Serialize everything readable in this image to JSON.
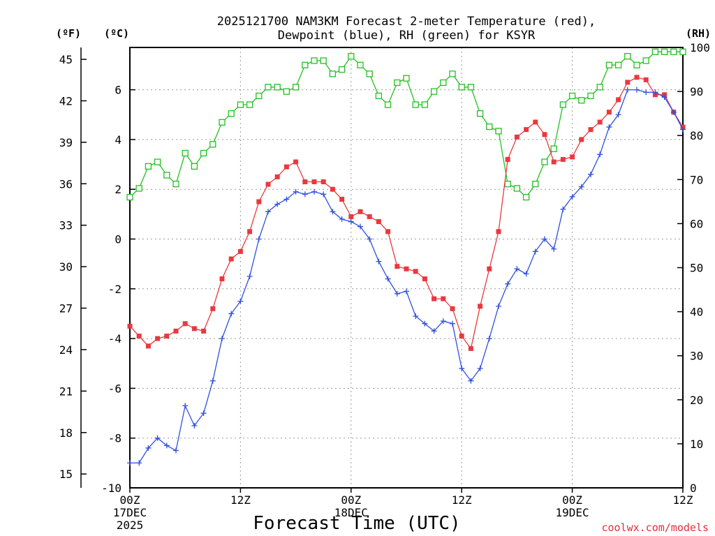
{
  "chart_data": {
    "type": "line",
    "title_line1": "2025121700 NAM3KM Forecast 2-meter Temperature (red),",
    "title_line2": "Dewpoint (blue), RH (green) for KSYR",
    "left_outer_unit": "(ºF)",
    "left_inner_unit": "(ºC)",
    "right_unit": "(RH)",
    "xlabel": "Forecast Time (UTC)",
    "credit": "coolwx.com/models",
    "x_hours_range": [
      0,
      60
    ],
    "celsius_range": [
      -10,
      7.7
    ],
    "rh_range": [
      0,
      100
    ],
    "x_ticks": [
      {
        "hour": 0,
        "line1": "00Z",
        "line2": "17DEC",
        "line3": "2025"
      },
      {
        "hour": 12,
        "line1": "12Z",
        "line2": "",
        "line3": ""
      },
      {
        "hour": 24,
        "line1": "00Z",
        "line2": "18DEC",
        "line3": ""
      },
      {
        "hour": 36,
        "line1": "12Z",
        "line2": "",
        "line3": ""
      },
      {
        "hour": 48,
        "line1": "00Z",
        "line2": "19DEC",
        "line3": ""
      },
      {
        "hour": 60,
        "line1": "12Z",
        "line2": "",
        "line3": ""
      }
    ],
    "celsius_ticks": [
      "-10",
      "-8",
      "-6",
      "-4",
      "-2",
      "0",
      "2",
      "4",
      "6"
    ],
    "fahrenheit_ticks": [
      "15",
      "18",
      "21",
      "24",
      "27",
      "30",
      "33",
      "36",
      "39",
      "42",
      "45"
    ],
    "rh_ticks": [
      "0",
      "10",
      "20",
      "30",
      "40",
      "50",
      "60",
      "70",
      "80",
      "90",
      "100"
    ],
    "series": [
      {
        "name": "Temperature",
        "unit": "C",
        "color": "#e8393f",
        "marker": "filled-square",
        "values": [
          -3.5,
          -3.9,
          -4.3,
          -4.0,
          -3.9,
          -3.7,
          -3.4,
          -3.6,
          -3.7,
          -2.8,
          -1.6,
          -0.8,
          -0.5,
          0.3,
          1.5,
          2.2,
          2.5,
          2.9,
          3.1,
          2.3,
          2.3,
          2.3,
          2.0,
          1.6,
          0.9,
          1.1,
          0.9,
          0.7,
          0.3,
          -1.1,
          -1.2,
          -1.3,
          -1.6,
          -2.4,
          -2.4,
          -2.8,
          -3.9,
          -4.4,
          -2.7,
          -1.2,
          0.3,
          3.2,
          4.1,
          4.4,
          4.7,
          4.2,
          3.1,
          3.2,
          3.3,
          4.0,
          4.4,
          4.7,
          5.1,
          5.6,
          6.3,
          6.5,
          6.4,
          5.8,
          5.8,
          5.1,
          4.5
        ]
      },
      {
        "name": "Dewpoint",
        "unit": "C",
        "color": "#2f4fe0",
        "marker": "plus",
        "values": [
          -9.0,
          -9.0,
          -8.4,
          -8.0,
          -8.3,
          -8.5,
          -6.7,
          -7.5,
          -7.0,
          -5.7,
          -4.0,
          -3.0,
          -2.5,
          -1.5,
          0.0,
          1.1,
          1.4,
          1.6,
          1.9,
          1.8,
          1.9,
          1.8,
          1.1,
          0.8,
          0.7,
          0.5,
          0.0,
          -0.9,
          -1.6,
          -2.2,
          -2.1,
          -3.1,
          -3.4,
          -3.7,
          -3.3,
          -3.4,
          -5.2,
          -5.7,
          -5.2,
          -4.0,
          -2.7,
          -1.8,
          -1.2,
          -1.4,
          -0.5,
          0.0,
          -0.4,
          1.2,
          1.7,
          2.1,
          2.6,
          3.4,
          4.5,
          5.0,
          6.0,
          6.0,
          5.9,
          5.9,
          5.7,
          5.1,
          4.4
        ]
      },
      {
        "name": "RH",
        "unit": "%",
        "color": "#22c022",
        "marker": "open-square",
        "values": [
          66,
          68,
          73,
          74,
          71,
          69,
          76,
          73,
          76,
          78,
          83,
          85,
          87,
          87,
          89,
          91,
          91,
          90,
          91,
          96,
          97,
          97,
          94,
          95,
          98,
          96,
          94,
          89,
          87,
          92,
          93,
          87,
          87,
          90,
          92,
          94,
          91,
          91,
          85,
          82,
          81,
          69,
          68,
          66,
          69,
          74,
          77,
          87,
          89,
          88,
          89,
          91,
          96,
          96,
          98,
          96,
          97,
          99,
          99,
          99,
          99
        ]
      }
    ]
  }
}
